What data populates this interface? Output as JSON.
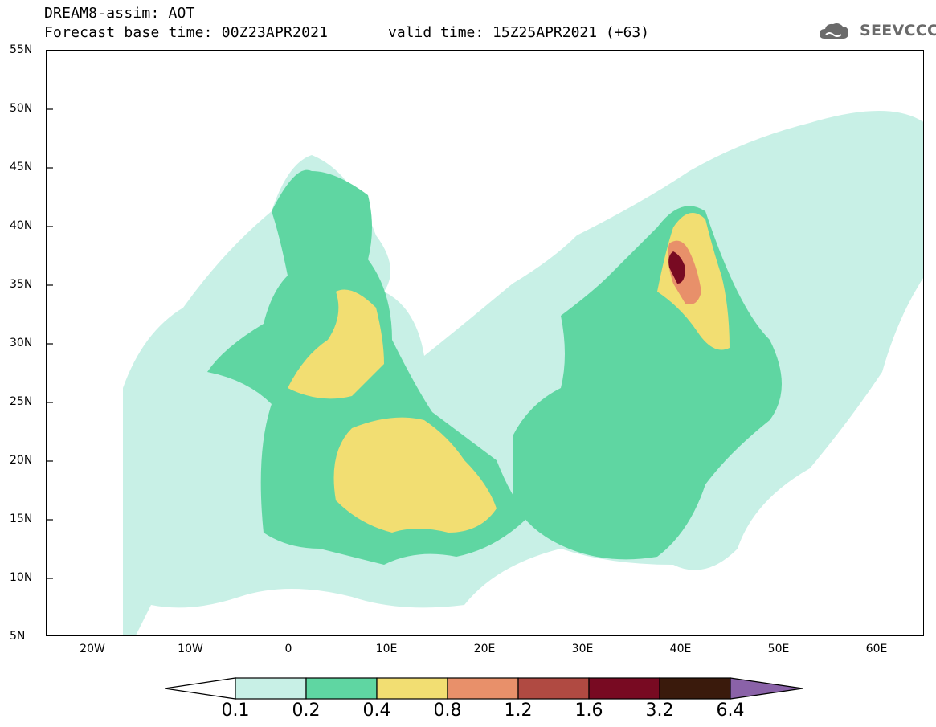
{
  "header": {
    "title_line1": "DREAM8-assim: AOT",
    "title_line2": "Forecast base time: 00Z23APR2021",
    "valid_time": "valid time: 15Z25APR2021 (+63)",
    "logo_text": "SEEVCCC"
  },
  "map": {
    "lat_labels": [
      "55N",
      "50N",
      "45N",
      "40N",
      "35N",
      "30N",
      "25N",
      "20N",
      "15N",
      "10N",
      "5N"
    ],
    "lon_labels": [
      "20W",
      "10W",
      "0",
      "10E",
      "20E",
      "30E",
      "40E",
      "50E",
      "60E"
    ],
    "lat_range": [
      5,
      55
    ],
    "lon_range": [
      -25,
      65
    ]
  },
  "legend": {
    "levels": [
      "0.1",
      "0.2",
      "0.4",
      "0.8",
      "1.2",
      "1.6",
      "3.2",
      "6.4"
    ],
    "colors": [
      "#c8f0e6",
      "#5fd6a2",
      "#f2de72",
      "#e8906a",
      "#b04a42",
      "#780a22",
      "#3a1a0c",
      "#8a62a8"
    ]
  }
}
